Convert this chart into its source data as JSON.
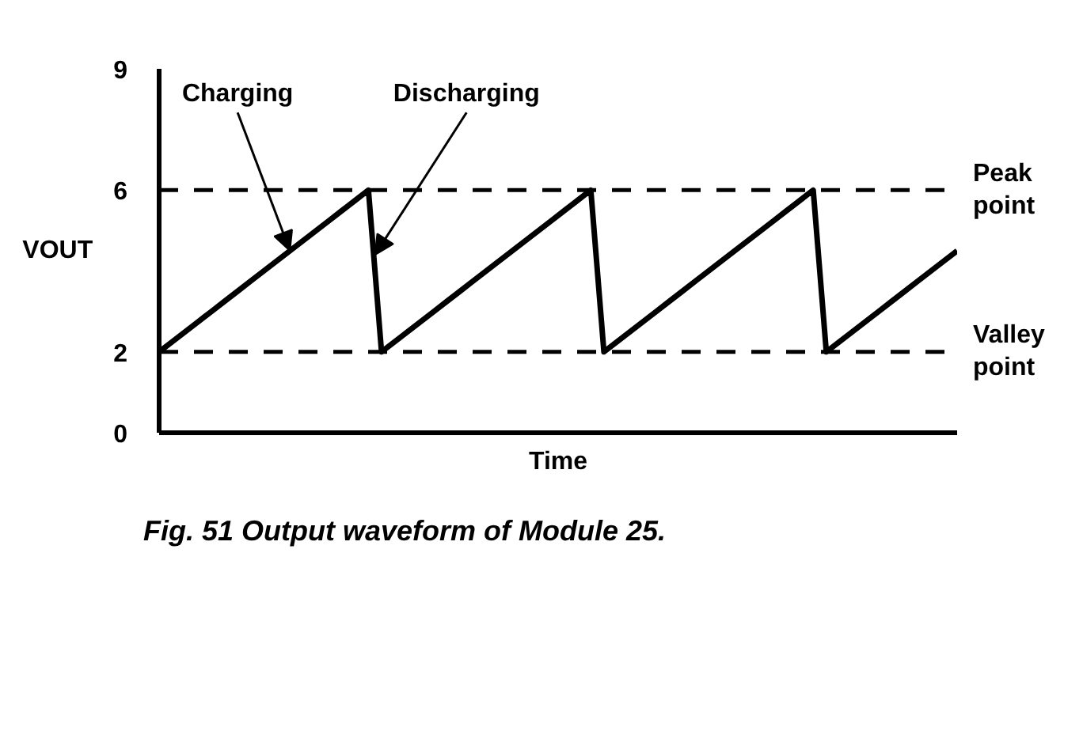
{
  "chart_data": {
    "type": "line",
    "ylabel": "VOUT",
    "xlabel": "Time",
    "categories": [
      null,
      null,
      null,
      null,
      null,
      null,
      null,
      null,
      null,
      null,
      null,
      null,
      null,
      null,
      null,
      null,
      null,
      null,
      null,
      null,
      null,
      null,
      null,
      null,
      null,
      null,
      null,
      null,
      null,
      null,
      null,
      null,
      null,
      null,
      null,
      null,
      null,
      null,
      null,
      null,
      null,
      null,
      null,
      null,
      null,
      null,
      null,
      null,
      null,
      null,
      null,
      null,
      null,
      null,
      null,
      null,
      null,
      null,
      null,
      null,
      null,
      null
    ],
    "series": [
      {
        "color": "#000000",
        "values": [
          2,
          2.25,
          2.5,
          2.75,
          3,
          3.25,
          3.5,
          3.75,
          4,
          4.25,
          4.5,
          4.75,
          5,
          5.25,
          5.5,
          5.75,
          6,
          2,
          2.25,
          2.5,
          2.75,
          3,
          3.25,
          3.5,
          3.75,
          4,
          4.25,
          4.5,
          4.75,
          5,
          5.25,
          5.5,
          5.75,
          6,
          2,
          2.25,
          2.5,
          2.75,
          3,
          3.25,
          3.5,
          3.75,
          4,
          4.25,
          4.5,
          4.75,
          5,
          5.25,
          5.5,
          5.75,
          6,
          2,
          2.25,
          2.5,
          2.75,
          3,
          3.25,
          3.5,
          3.75,
          4,
          4.25,
          4.5
        ]
      }
    ],
    "ylim": [
      0,
      9
    ],
    "yticks": [
      0,
      2,
      6,
      9
    ],
    "grid": false,
    "line_style": "solid",
    "ref_lines": [
      {
        "axis": "y",
        "value": 6,
        "label": "Peak point",
        "line_style": "dashed",
        "color": "#000000"
      },
      {
        "axis": "y",
        "value": 2,
        "label": "Valley point",
        "line_style": "dashed",
        "color": "#000000"
      }
    ],
    "annotations": [
      "Charging",
      "Discharging",
      "Fig. 51  Output waveform of Module 25."
    ]
  }
}
